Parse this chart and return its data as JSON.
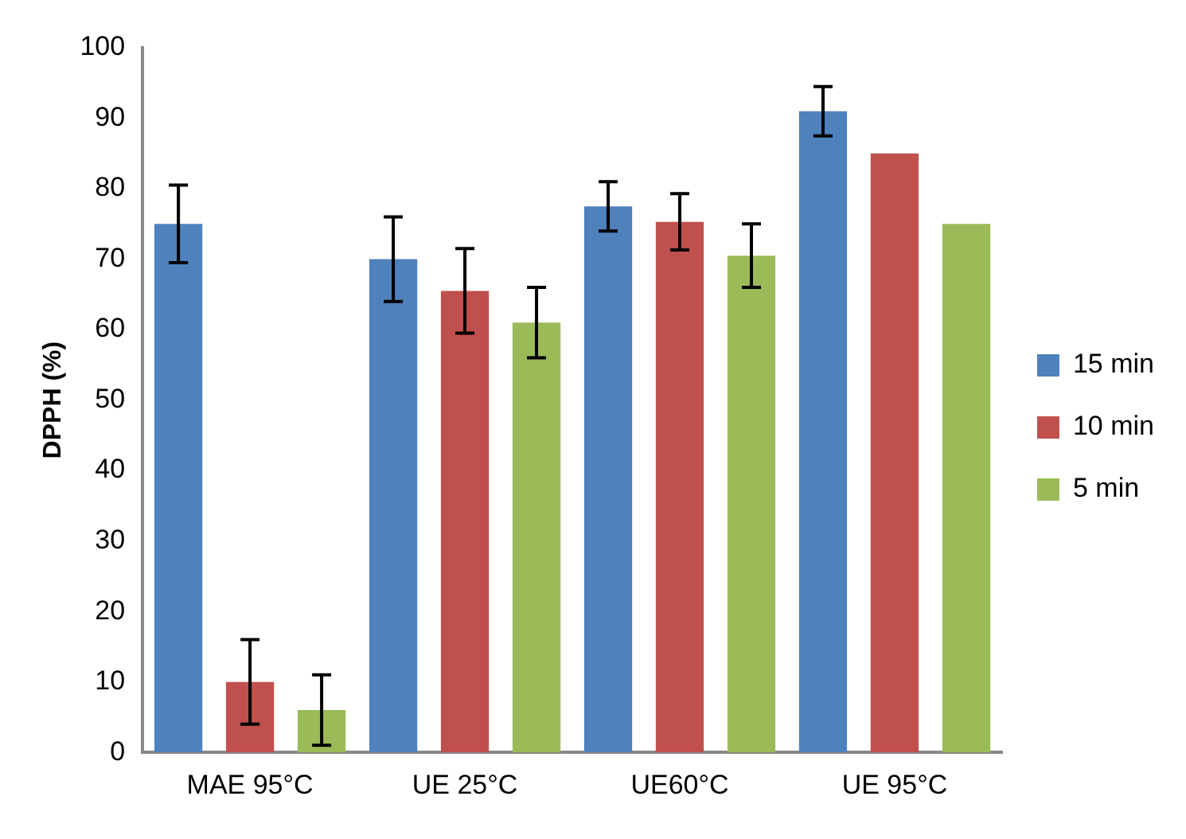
{
  "chart_data": {
    "type": "bar",
    "ylabel": "DPPH (%)",
    "categories": [
      "MAE 95°C",
      "UE 25°C",
      "UE60°C",
      "UE 95°C"
    ],
    "series": [
      {
        "name": "15 min",
        "color": "#4f81bd",
        "values": [
          75,
          70,
          77.5,
          91
        ],
        "errors": [
          5.5,
          6,
          3.5,
          3.5
        ]
      },
      {
        "name": "10 min",
        "color": "#c0504d",
        "values": [
          10,
          65.5,
          75.3,
          85
        ],
        "errors": [
          6,
          6,
          4,
          null
        ]
      },
      {
        "name": "5 min",
        "color": "#9bbb59",
        "values": [
          6,
          61,
          70.5,
          75
        ],
        "errors": [
          5,
          5,
          4.5,
          null
        ]
      }
    ],
    "ylim": [
      0,
      100
    ],
    "yticks": [
      0,
      10,
      20,
      30,
      40,
      50,
      60,
      70,
      80,
      90,
      100
    ],
    "grid": false,
    "legend": "right"
  }
}
